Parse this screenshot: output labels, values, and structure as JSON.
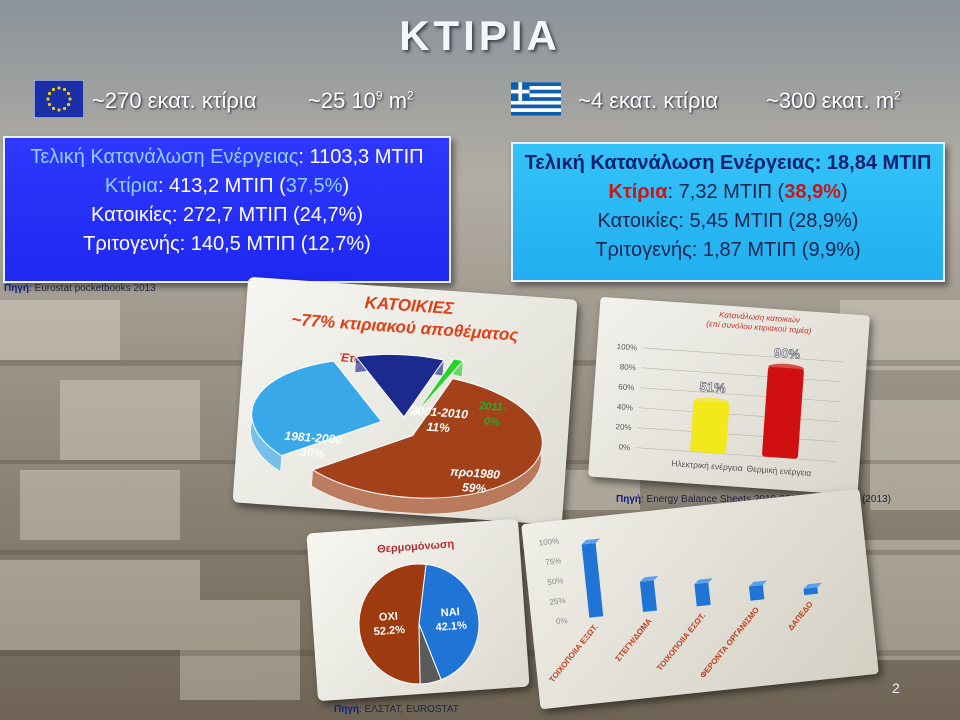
{
  "title": "ΚΤΙΡΙΑ",
  "eu": {
    "buildings": "~270 εκατ. κτίρια",
    "area_base": "~25 10",
    "area_exp": "9",
    "area_unit": " m",
    "area_unit_exp": "2",
    "box": {
      "line1_label": "Τελική Κατανάλωση Ενέργειας",
      "line1_value": ": 1103,3 ΜΤΙΠ",
      "line2_label": "Κτίρια",
      "line2_value": ": 413,2 ΜΤΙΠ (",
      "line2_pct": "37,5%",
      "line2_end": ")",
      "line3": "Κατοικίες: 272,7 ΜΤΙΠ (24,7%)",
      "line4": "Τριτογενής: 140,5 ΜΤΙΠ (12,7%)"
    },
    "source_label": "Πηγή",
    "source_text": ": Eurostat pocketbooks 2013"
  },
  "gr": {
    "buildings": "~4 εκατ. κτίρια",
    "area": "~300 εκατ. m",
    "area_exp": "2",
    "box": {
      "line1_label": "Τελική Κατανάλωση Ενέργειας",
      "line1_value": ": 18,84 ΜΤΙΠ",
      "line2_label": "Κτίρια",
      "line2_value": ": 7,32 ΜΤΙΠ (",
      "line2_pct": "38,9%",
      "line2_end": ")",
      "line3": "Κατοικίες: 5,45 ΜΤΙΠ (28,9%)",
      "line4": "Τριτογενής: 1,87 ΜΤΙΠ (9,9%)"
    }
  },
  "pie1_panel": {
    "heading": "ΚΑΤΟΙΚΙΕΣ",
    "subheading": "~77% κτιριακού αποθέματος"
  },
  "bar1_source": {
    "label": "Πηγή",
    "text": ": Energy Balance Sheets 2010-2011, EUROSTAT (2013)"
  },
  "pie2_source": {
    "label": "Πηγή",
    "text": ": ΕΛΣΤΑΤ, EUROSTAT"
  },
  "slide_number": "2",
  "colors": {
    "eu_box": "#2630f4",
    "gr_box": "#2ab6f2",
    "pie_pro1980": "#a3421a",
    "pie_1981_2000": "#38a8e8",
    "pie_2001_2010": "#1b2a8c",
    "pie_2011": "#2bd02b",
    "bar_yellow": "#f2e81a",
    "bar_red": "#d01010",
    "bar_blue": "#1f74d6",
    "pie2_oxi": "#9e3a10",
    "pie2_nai": "#1f74d6",
    "pie2_grey": "#5a5a5a"
  },
  "chart_data": [
    {
      "type": "pie",
      "title": "Έτος κατασκευής",
      "categories": [
        "προ1980",
        "1981-2000",
        "2001-2010",
        "2011-"
      ],
      "values": [
        59,
        30,
        11,
        0
      ],
      "labels": [
        "προ1980\n59%",
        "1981-2000\n30%",
        "2001-2010\n11%",
        "2011-\n0%"
      ]
    },
    {
      "type": "bar",
      "title": "Κατανάλωση κατοικιών (επί συνόλου κτιριακού τομέα)",
      "categories": [
        "Ηλεκτρική ενέργεια",
        "Θερμική ενέργεια"
      ],
      "values": [
        51,
        90
      ],
      "data_labels": [
        "51%",
        "90%"
      ],
      "ylim": [
        0,
        100
      ],
      "yticks": [
        "0%",
        "20%",
        "40%",
        "60%",
        "80%",
        "100%"
      ]
    },
    {
      "type": "pie",
      "title": "Θερμομόνωση",
      "categories": [
        "ΟΧΙ",
        "ΝΑΙ",
        ""
      ],
      "values": [
        52.2,
        42.1,
        5.7
      ],
      "labels": [
        "ΟΧΙ\n52.2%",
        "ΝΑΙ\n42.1%",
        ""
      ]
    },
    {
      "type": "bar",
      "categories": [
        "ΤΟΙΧΟΠΟΙΙΑ ΕΞΩΤ.",
        "ΣΤΕΓΗ/ΔΩΜΑ",
        "ΤΟΙΧΟΠΟΙΙΑ ΕΣΩΤ.",
        "ΦΕΡΟΝΤΑ ΟΡΓΑΝΙΣΜΟ",
        "ΔΑΠΕΔΟ"
      ],
      "values": [
        92,
        38,
        28,
        18,
        8
      ],
      "ylim": [
        0,
        100
      ],
      "yticks": [
        "0%",
        "25%",
        "50%",
        "75%",
        "100%"
      ]
    }
  ]
}
